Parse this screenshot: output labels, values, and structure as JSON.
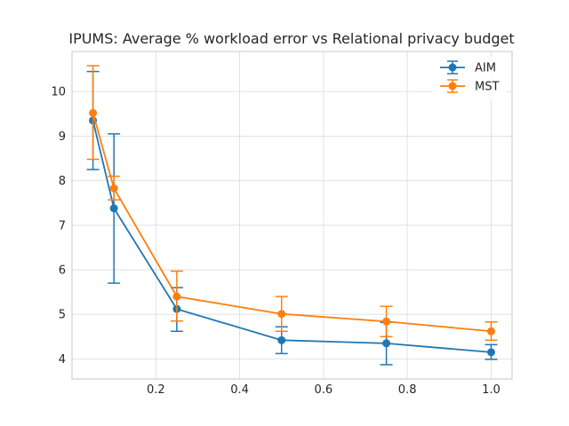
{
  "chart_data": {
    "type": "line",
    "title": "IPUMS: Average % workload error vs Relational privacy budget",
    "xlabel": "",
    "ylabel": "",
    "xlim": [
      0.0,
      1.05
    ],
    "ylim": [
      3.55,
      10.9
    ],
    "xticks": [
      0.2,
      0.4,
      0.6,
      0.8,
      1.0
    ],
    "xtick_labels": [
      "0.2",
      "0.4",
      "0.6",
      "0.8",
      "1.0"
    ],
    "yticks": [
      4,
      5,
      6,
      7,
      8,
      9,
      10
    ],
    "ytick_labels": [
      "4",
      "5",
      "6",
      "7",
      "8",
      "9",
      "10"
    ],
    "grid": true,
    "legend_position": "top-right",
    "series": [
      {
        "name": "AIM",
        "color": "#1f77b4",
        "x": [
          0.05,
          0.1,
          0.25,
          0.5,
          0.75,
          1.0
        ],
        "y": [
          9.35,
          7.38,
          5.12,
          4.42,
          4.35,
          4.15
        ],
        "err_low": [
          8.25,
          5.7,
          4.62,
          4.12,
          3.87,
          3.99
        ],
        "err_high": [
          10.45,
          9.05,
          5.6,
          4.72,
          4.82,
          4.32
        ]
      },
      {
        "name": "MST",
        "color": "#ff7f0e",
        "x": [
          0.05,
          0.1,
          0.25,
          0.5,
          0.75,
          1.0
        ],
        "y": [
          9.52,
          7.83,
          5.4,
          5.01,
          4.84,
          4.62
        ],
        "err_low": [
          8.48,
          7.57,
          4.85,
          4.62,
          4.5,
          4.42
        ],
        "err_high": [
          10.58,
          8.1,
          5.97,
          5.4,
          5.18,
          4.83
        ]
      }
    ]
  }
}
